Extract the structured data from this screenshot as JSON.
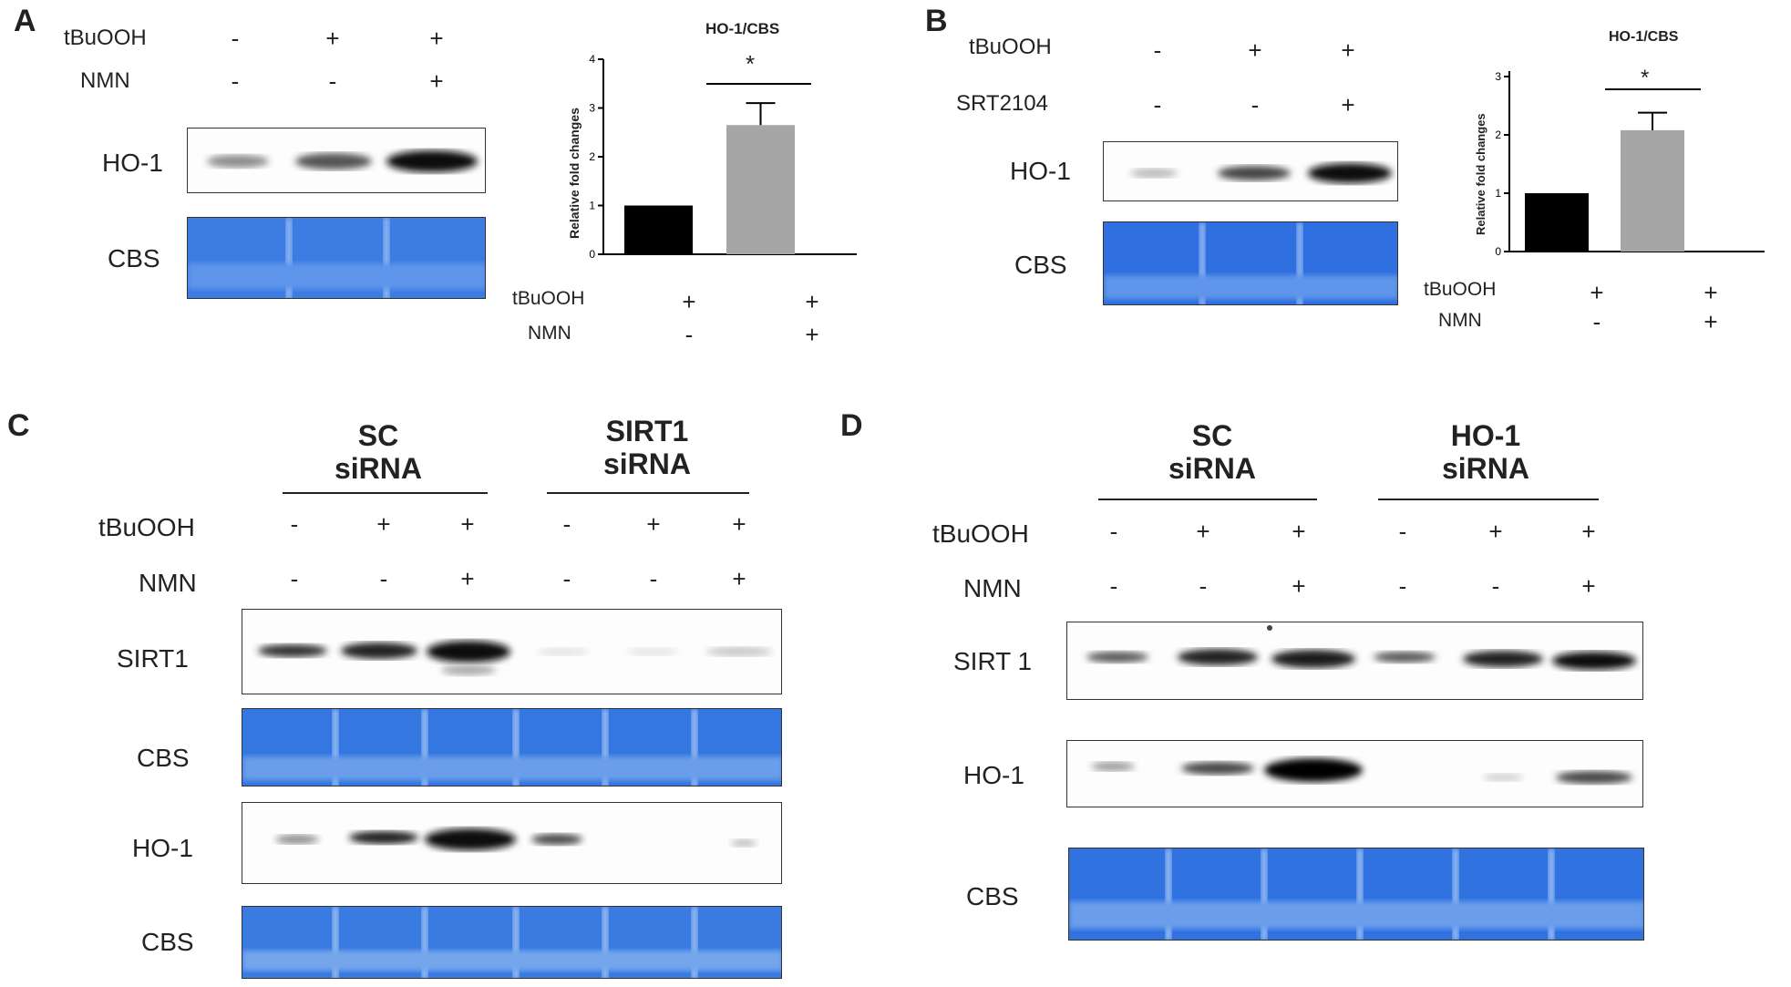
{
  "panels": {
    "a": "A",
    "b": "B",
    "c": "C",
    "d": "D"
  },
  "rows": {
    "tbuooh": "tBuOOH",
    "nmn": "NMN",
    "srt2104": "SRT2104"
  },
  "blots": {
    "ho1": "HO-1",
    "cbs": "CBS",
    "sirt1": "SIRT1",
    "sirt1_d": "SIRT 1"
  },
  "groups": {
    "sc": "SC",
    "sirna": "siRNA",
    "sirt1": "SIRT1",
    "ho1": "HO-1"
  },
  "signs": {
    "plus": "+",
    "minus": "-",
    "star": "*"
  },
  "colors": {
    "cbs_stain": "#3d7de3",
    "bar_control": "#000000",
    "bar_treated": "#a6a6a6"
  },
  "conditions": {
    "a_tbuooh": [
      "-",
      "+",
      "+"
    ],
    "a_nmn": [
      "-",
      "-",
      "+"
    ],
    "b_tbuooh": [
      "-",
      "+",
      "+"
    ],
    "b_srt2104": [
      "-",
      "-",
      "+"
    ],
    "chart_tbuooh": [
      "+",
      "+"
    ],
    "chart_nmn": [
      "-",
      "+"
    ],
    "cd_tbuooh": [
      "-",
      "+",
      "+",
      "-",
      "+",
      "+"
    ],
    "cd_nmn": [
      "-",
      "-",
      "+",
      "-",
      "-",
      "+"
    ]
  },
  "chart_data": [
    {
      "type": "bar",
      "title": "HO-1/CBS",
      "ylabel": "Relative fold changes",
      "ylim": [
        0,
        4
      ],
      "yticks": [
        0,
        1,
        2,
        3,
        4
      ],
      "series": [
        {
          "values": [
            1.0,
            2.65
          ]
        }
      ],
      "error": [
        0,
        0.45
      ],
      "annotation": "*"
    },
    {
      "type": "bar",
      "title": "HO-1/CBS",
      "ylabel": "Relative fold changes",
      "ylim": [
        0,
        3
      ],
      "yticks": [
        0,
        1,
        2,
        3
      ],
      "series": [
        {
          "values": [
            1.0,
            2.08
          ]
        }
      ],
      "error": [
        0,
        0.3
      ],
      "annotation": "*"
    }
  ]
}
